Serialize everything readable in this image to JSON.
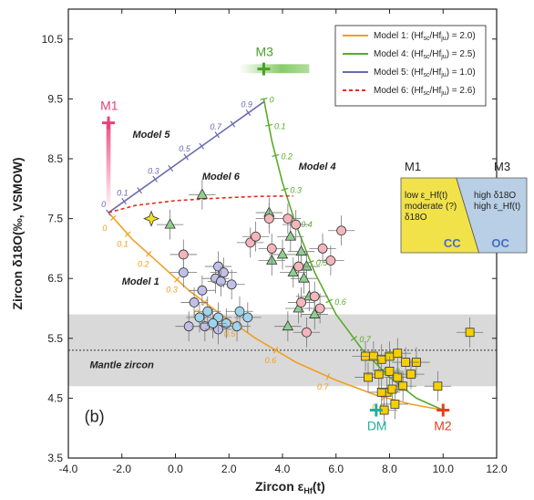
{
  "chart_data": {
    "type": "scatter",
    "panel_label": "(b)",
    "xlabel": "Zircon ε_Hf(t)",
    "xlabel_main": "Zircon ε",
    "xlabel_sub": "Hf",
    "xlabel_tail": "(t)",
    "ylabel": "Zircon δ18O(‰, VSMOW)",
    "xlim": [
      -4.0,
      12.0
    ],
    "ylim": [
      3.5,
      11.0
    ],
    "xticks": [
      "-4.0",
      "-2.0",
      "0.0",
      "2.0",
      "4.0",
      "6.0",
      "8.0",
      "10.0",
      "12.0"
    ],
    "yticks": [
      "3.5",
      "4.5",
      "5.5",
      "6.5",
      "7.5",
      "8.5",
      "9.5",
      "10.5"
    ],
    "colors": {
      "model1": "#f0a020",
      "model4": "#5aaa2a",
      "model5": "#6a6ab0",
      "model6": "#e03020",
      "mantle_band": "#d9d9d9"
    },
    "endmembers": [
      {
        "name": "M1",
        "x": -2.5,
        "y": 9.1,
        "color": "#e8407a"
      },
      {
        "name": "M3",
        "x": 3.3,
        "y": 10.0,
        "color": "#4a9e2a"
      },
      {
        "name": "M2",
        "x": 10.0,
        "y": 4.3,
        "color": "#e04020"
      },
      {
        "name": "DM",
        "x": 7.5,
        "y": 4.3,
        "color": "#20b0a0"
      }
    ],
    "mantle_band": {
      "ymin": 4.7,
      "ymax": 5.9,
      "mean": 5.3,
      "label": "Mantle zircon"
    },
    "model_curves": [
      {
        "name": "Model 1",
        "from": "M1-M2",
        "label_ticks": [
          "0",
          "0.1",
          "0.2",
          "0.3",
          "0.4",
          "0.5",
          "0.6",
          "0.7",
          "0.8"
        ]
      },
      {
        "name": "Model 4",
        "from": "M3-M2",
        "label_ticks": [
          "0",
          "0.1",
          "0.2",
          "0.3",
          "0.4",
          "0.5",
          "0.6",
          "0.7",
          "0.8"
        ]
      },
      {
        "name": "Model 5",
        "from": "M1-M3",
        "label_ticks": [
          "0",
          "0.1",
          "0.3",
          "0.5",
          "0.7",
          "0.9"
        ]
      },
      {
        "name": "Model 6",
        "label": "Model 6"
      }
    ],
    "legend": [
      {
        "name": "Model 1: (Hf",
        "ratio": "2.0",
        "style": "solid",
        "color": "#f0a020"
      },
      {
        "name": "Model 4: (Hf",
        "ratio": "2.5",
        "style": "solid",
        "color": "#5aaa2a"
      },
      {
        "name": "Model 5: (Hf",
        "ratio": "1.0",
        "style": "solid",
        "color": "#6a6ab0"
      },
      {
        "name": "Model 6: (Hf",
        "ratio": "2.6",
        "style": "dashed",
        "color": "#e03020"
      }
    ],
    "inset": {
      "top_left": "M1",
      "top_right": "M3",
      "left_lines": [
        "low ε_Hf(t)",
        "moderate (?)",
        "δ18O"
      ],
      "right_lines": [
        "high δ18O",
        "high ε_Hf(t)"
      ],
      "left_tag": "CC",
      "right_tag": "OC"
    },
    "series": [
      {
        "name": "squares",
        "marker": "square",
        "color": "#f5d000",
        "points": [
          [
            7.1,
            5.2
          ],
          [
            7.4,
            5.2
          ],
          [
            7.7,
            5.15
          ],
          [
            8.0,
            5.2
          ],
          [
            8.3,
            5.25
          ],
          [
            7.2,
            4.85
          ],
          [
            7.6,
            4.9
          ],
          [
            8.0,
            4.95
          ],
          [
            8.3,
            4.85
          ],
          [
            8.5,
            4.7
          ],
          [
            7.9,
            4.6
          ],
          [
            7.7,
            4.6
          ],
          [
            8.1,
            4.65
          ],
          [
            7.8,
            4.3
          ],
          [
            9.0,
            5.1
          ],
          [
            9.8,
            4.7
          ],
          [
            11.0,
            5.6
          ],
          [
            8.6,
            5.1
          ],
          [
            8.2,
            4.4
          ],
          [
            8.8,
            4.9
          ]
        ]
      },
      {
        "name": "triangles",
        "marker": "triangle",
        "color": "#8fcf8f",
        "points": [
          [
            1.0,
            7.9
          ],
          [
            -0.2,
            7.4
          ],
          [
            3.5,
            7.6
          ],
          [
            4.3,
            7.2
          ],
          [
            4.0,
            6.9
          ],
          [
            4.4,
            6.6
          ],
          [
            4.9,
            6.7
          ],
          [
            5.0,
            6.2
          ],
          [
            4.6,
            6.0
          ],
          [
            4.2,
            5.7
          ],
          [
            5.2,
            5.9
          ],
          [
            4.7,
            6.95
          ],
          [
            4.8,
            6.5
          ],
          [
            3.6,
            6.8
          ]
        ]
      },
      {
        "name": "circles_pink",
        "marker": "circle",
        "color": "#f4b5bc",
        "points": [
          [
            0.3,
            6.9
          ],
          [
            2.8,
            7.1
          ],
          [
            3.0,
            7.2
          ],
          [
            3.5,
            7.5
          ],
          [
            3.6,
            7.0
          ],
          [
            4.2,
            7.5
          ],
          [
            4.5,
            7.4
          ],
          [
            4.6,
            6.7
          ],
          [
            5.5,
            7.0
          ],
          [
            5.8,
            6.8
          ],
          [
            6.2,
            7.3
          ],
          [
            5.4,
            6.0
          ],
          [
            4.9,
            5.6
          ],
          [
            5.2,
            6.2
          ],
          [
            4.7,
            6.1
          ]
        ]
      },
      {
        "name": "circles_lavender",
        "marker": "circle",
        "color": "#c0c0e8",
        "points": [
          [
            0.3,
            6.6
          ],
          [
            1.0,
            6.3
          ],
          [
            1.5,
            6.5
          ],
          [
            1.6,
            6.7
          ],
          [
            1.8,
            6.6
          ],
          [
            1.7,
            6.45
          ],
          [
            2.1,
            6.4
          ],
          [
            0.5,
            5.7
          ],
          [
            1.1,
            5.7
          ],
          [
            1.6,
            5.65
          ],
          [
            0.7,
            6.1
          ]
        ]
      },
      {
        "name": "circles_blue",
        "marker": "circle",
        "color": "#9fd4f0",
        "points": [
          [
            0.9,
            5.85
          ],
          [
            1.2,
            5.95
          ],
          [
            1.6,
            5.85
          ],
          [
            1.9,
            5.75
          ],
          [
            2.3,
            5.7
          ],
          [
            2.7,
            5.85
          ],
          [
            2.4,
            5.95
          ],
          [
            1.4,
            5.75
          ]
        ]
      },
      {
        "name": "star",
        "marker": "star",
        "color": "#f5e020",
        "points": [
          [
            -0.9,
            7.5
          ]
        ]
      }
    ]
  }
}
